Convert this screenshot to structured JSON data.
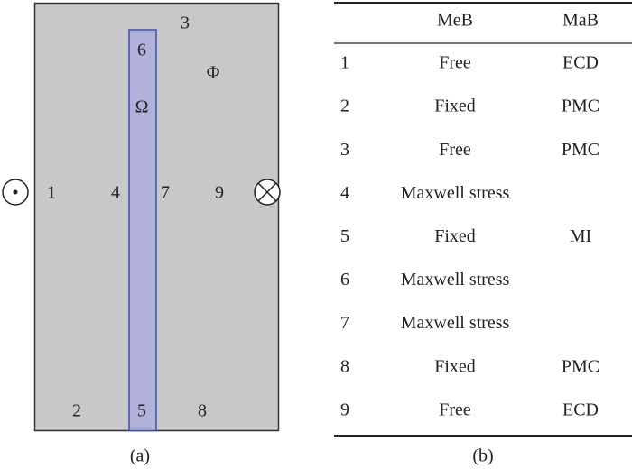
{
  "figure": {
    "diagram": {
      "regions": [
        "1",
        "2",
        "3",
        "4",
        "5",
        "6",
        "7",
        "8",
        "9"
      ],
      "potential": "Φ",
      "domain": "Ω",
      "caption": "(a)"
    },
    "table": {
      "columns": [
        "MeB",
        "MaB"
      ],
      "rows": [
        {
          "id": "1",
          "meb": "Free",
          "mab": "ECD"
        },
        {
          "id": "2",
          "meb": "Fixed",
          "mab": "PMC"
        },
        {
          "id": "3",
          "meb": "Free",
          "mab": "PMC"
        },
        {
          "id": "4",
          "meb": "Maxwell stress"
        },
        {
          "id": "5",
          "meb": "Fixed",
          "mab": "MI"
        },
        {
          "id": "6",
          "meb": "Maxwell stress"
        },
        {
          "id": "7",
          "meb": "Maxwell stress"
        },
        {
          "id": "8",
          "meb": "Fixed",
          "mab": "PMC"
        },
        {
          "id": "9",
          "meb": "Free",
          "mab": "ECD"
        }
      ],
      "caption": "(b)"
    }
  }
}
